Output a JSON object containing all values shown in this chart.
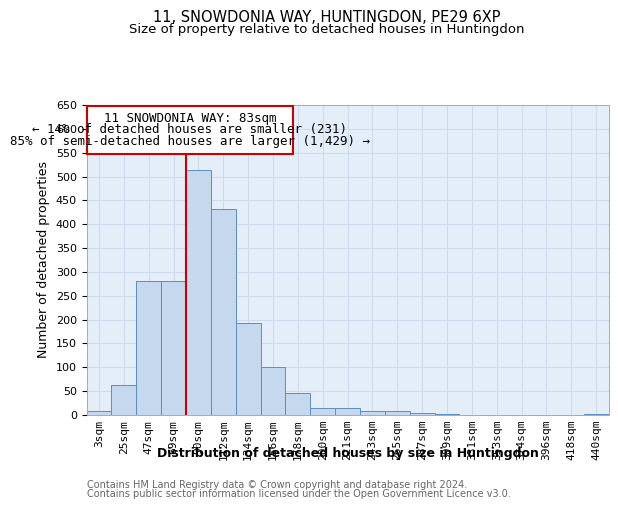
{
  "title1": "11, SNOWDONIA WAY, HUNTINGDON, PE29 6XP",
  "title2": "Size of property relative to detached houses in Huntingdon",
  "xlabel": "Distribution of detached houses by size in Huntingdon",
  "ylabel": "Number of detached properties",
  "footnote1": "Contains HM Land Registry data © Crown copyright and database right 2024.",
  "footnote2": "Contains public sector information licensed under the Open Government Licence v3.0.",
  "annotation_line1": "11 SNOWDONIA WAY: 83sqm",
  "annotation_line2": "← 14% of detached houses are smaller (231)",
  "annotation_line3": "85% of semi-detached houses are larger (1,429) →",
  "bar_labels": [
    "3sqm",
    "25sqm",
    "47sqm",
    "69sqm",
    "90sqm",
    "112sqm",
    "134sqm",
    "156sqm",
    "178sqm",
    "200sqm",
    "221sqm",
    "243sqm",
    "265sqm",
    "287sqm",
    "309sqm",
    "331sqm",
    "353sqm",
    "374sqm",
    "396sqm",
    "418sqm",
    "440sqm"
  ],
  "bar_values": [
    8,
    63,
    280,
    280,
    513,
    432,
    192,
    100,
    47,
    15,
    14,
    8,
    8,
    4,
    3,
    1,
    0,
    0,
    0,
    0,
    2
  ],
  "bar_color": "#c5d8ed",
  "bar_edge_color": "#5b8ec4",
  "grid_color": "#ccdaeb",
  "background_color": "#e4eef8",
  "vline_color": "#cc0000",
  "vline_x": 3.5,
  "ylim": [
    0,
    650
  ],
  "yticks": [
    0,
    50,
    100,
    150,
    200,
    250,
    300,
    350,
    400,
    450,
    500,
    550,
    600,
    650
  ],
  "annotation_box_color": "#cc0000",
  "title1_fontsize": 10.5,
  "title2_fontsize": 9.5,
  "axis_label_fontsize": 9,
  "tick_fontsize": 8,
  "annot_fontsize": 9,
  "footnote_fontsize": 7,
  "footnote_color": "#666666"
}
